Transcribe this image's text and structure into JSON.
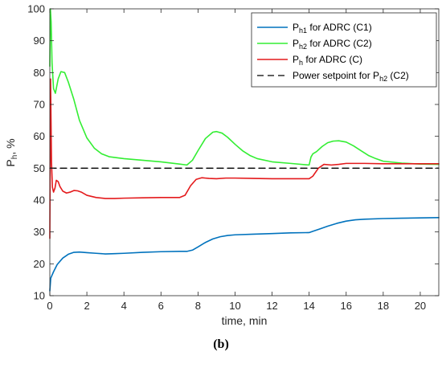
{
  "chart_data": {
    "type": "line",
    "xlabel": "time, min",
    "ylabel_base": "P",
    "ylabel_sub": "h",
    "ylabel_suffix": ", %",
    "xlim": [
      0,
      21
    ],
    "ylim": [
      10,
      100
    ],
    "xticks": [
      0,
      2,
      4,
      6,
      8,
      10,
      12,
      14,
      16,
      18,
      20
    ],
    "yticks": [
      10,
      20,
      30,
      40,
      50,
      60,
      70,
      80,
      90,
      100
    ],
    "grid": false,
    "legend_position": "top-right",
    "panel_label": "(b)",
    "series": [
      {
        "name_base": "P",
        "name_sub": "h1",
        "name_rest": " for ADRC (C1)",
        "color": "#0072BD",
        "style": "solid",
        "x": [
          0,
          0.05,
          0.2,
          0.4,
          0.7,
          1.0,
          1.3,
          1.6,
          2.0,
          2.5,
          3.0,
          3.5,
          4.0,
          5.0,
          6.0,
          7.0,
          7.4,
          7.7,
          8.0,
          8.4,
          8.8,
          9.2,
          9.6,
          10.0,
          11.0,
          12.0,
          13.0,
          14.0,
          14.2,
          14.6,
          15.0,
          15.5,
          16.0,
          16.5,
          17.0,
          18.0,
          19.0,
          20.0,
          21.0
        ],
        "y": [
          11.5,
          15.5,
          17.5,
          19.8,
          21.8,
          23.0,
          23.6,
          23.7,
          23.5,
          23.3,
          23.1,
          23.2,
          23.3,
          23.6,
          23.8,
          23.9,
          23.9,
          24.3,
          25.3,
          26.7,
          27.8,
          28.5,
          28.9,
          29.1,
          29.3,
          29.5,
          29.7,
          29.8,
          30.2,
          31.0,
          31.8,
          32.7,
          33.4,
          33.8,
          34.0,
          34.2,
          34.3,
          34.4,
          34.5
        ]
      },
      {
        "name_base": "P",
        "name_sub": "h2",
        "name_rest": " for ADRC (C2)",
        "color": "#33EE33",
        "style": "solid",
        "x": [
          0,
          0.03,
          0.07,
          0.12,
          0.2,
          0.3,
          0.45,
          0.6,
          0.8,
          1.0,
          1.3,
          1.6,
          2.0,
          2.4,
          2.8,
          3.2,
          4.0,
          5.0,
          6.0,
          7.0,
          7.4,
          7.7,
          8.0,
          8.4,
          8.8,
          9.0,
          9.3,
          9.6,
          10.0,
          10.4,
          10.8,
          11.2,
          12.0,
          13.0,
          14.0,
          14.1,
          14.2,
          14.4,
          14.7,
          15.0,
          15.3,
          15.6,
          16.0,
          16.4,
          16.8,
          17.2,
          17.6,
          18.0,
          19.0,
          20.0,
          21.0
        ],
        "y": [
          82.0,
          100,
          96.0,
          83.0,
          75.0,
          73.5,
          78.0,
          80.3,
          80.0,
          77.0,
          71.5,
          65.0,
          59.5,
          56.3,
          54.5,
          53.6,
          53.0,
          52.5,
          52.0,
          51.3,
          51.0,
          52.5,
          55.5,
          59.3,
          61.3,
          61.5,
          61.0,
          59.7,
          57.5,
          55.5,
          54.0,
          53.0,
          52.0,
          51.5,
          51.0,
          53.5,
          54.5,
          55.2,
          56.8,
          58.0,
          58.5,
          58.6,
          58.2,
          57.0,
          55.5,
          54.0,
          53.0,
          52.2,
          51.6,
          51.3,
          51.2
        ]
      },
      {
        "name_base": "P",
        "name_sub": "h",
        "name_rest": " for ADRC (C)",
        "color": "#E41A1C",
        "style": "solid",
        "x": [
          0,
          0.04,
          0.09,
          0.14,
          0.2,
          0.28,
          0.35,
          0.45,
          0.55,
          0.7,
          0.9,
          1.1,
          1.3,
          1.5,
          1.7,
          2.0,
          2.5,
          3.0,
          3.5,
          4.0,
          5.0,
          6.0,
          7.0,
          7.3,
          7.6,
          7.9,
          8.2,
          8.6,
          9.0,
          9.5,
          10.0,
          11.0,
          12.0,
          13.0,
          14.0,
          14.2,
          14.5,
          14.8,
          15.2,
          15.6,
          16.0,
          17.0,
          18.0,
          19.0,
          20.0,
          21.0
        ],
        "y": [
          28.0,
          78.0,
          52.0,
          44.0,
          42.5,
          43.8,
          46.2,
          45.8,
          44.2,
          42.8,
          42.2,
          42.5,
          43.0,
          42.9,
          42.5,
          41.5,
          40.8,
          40.5,
          40.5,
          40.6,
          40.7,
          40.8,
          40.8,
          41.5,
          44.5,
          46.5,
          47.0,
          46.8,
          46.7,
          46.9,
          46.9,
          46.8,
          46.7,
          46.7,
          46.7,
          47.5,
          50.0,
          51.2,
          51.0,
          51.2,
          51.5,
          51.5,
          51.4,
          51.4,
          51.4,
          51.4
        ]
      },
      {
        "name_base": "Power setpoint for P",
        "name_sub": "h2",
        "name_rest": " (C2)",
        "color": "#000000",
        "style": "dashed",
        "x": [
          0,
          21
        ],
        "y": [
          50,
          50
        ]
      }
    ]
  }
}
